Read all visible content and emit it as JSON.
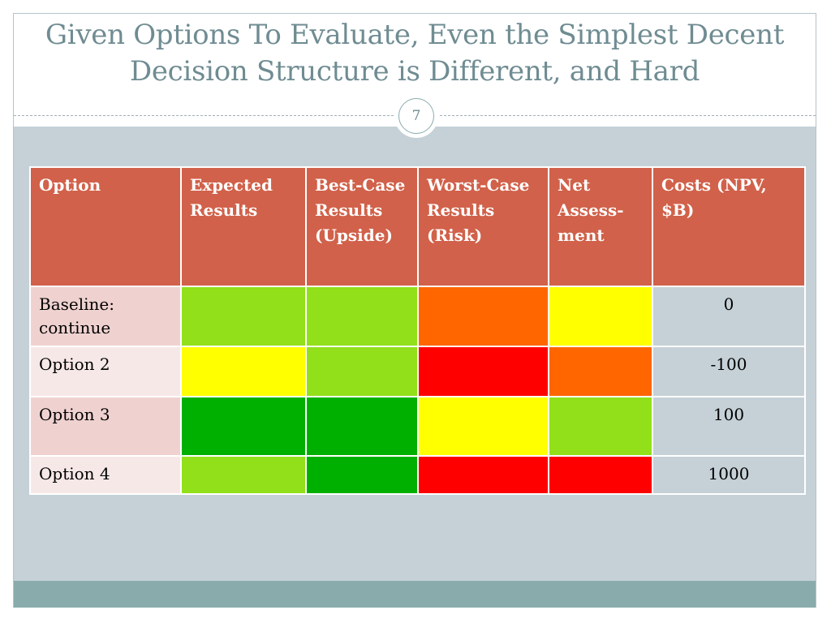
{
  "slide": {
    "title": "Given Options To Evaluate, Even the Simplest Decent Decision Structure is Different, and Hard",
    "number": "7"
  },
  "table": {
    "headers": [
      "Option",
      "Expected Results",
      "Best-Case Results (Upside)",
      "Worst-Case Results (Risk)",
      "Net Assess-ment",
      "Costs (NPV, $B)"
    ],
    "rows": [
      {
        "option": "Baseline: continue",
        "ratings": [
          "#92e01a",
          "#92e01a",
          "#ff6600",
          "#ffff00"
        ],
        "cost": "0"
      },
      {
        "option": "Option 2",
        "ratings": [
          "#ffff00",
          "#92e01a",
          "#ff0000",
          "#ff6600"
        ],
        "cost": "-100"
      },
      {
        "option": "Option 3",
        "ratings": [
          "#00b000",
          "#00b000",
          "#ffff00",
          "#92e01a"
        ],
        "cost": "100"
      },
      {
        "option": "Option 4",
        "ratings": [
          "#92e01a",
          "#00b000",
          "#ff0000",
          "#ff0000"
        ],
        "cost": "1000"
      }
    ],
    "option_cell_colors": [
      "#efd2d0",
      "#f7e8e8",
      "#efd2d0",
      "#f7e8e8"
    ]
  }
}
